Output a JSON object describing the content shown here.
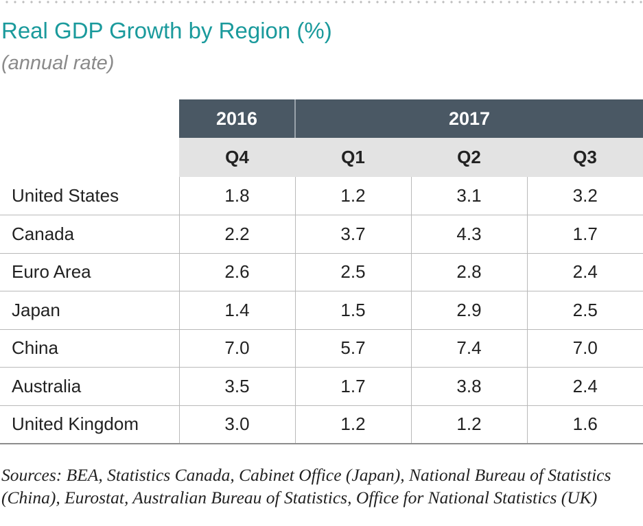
{
  "title": "Real GDP Growth by Region (%)",
  "subtitle": "(annual rate)",
  "chart_data": {
    "type": "table",
    "title": "Real GDP Growth by Region (%)",
    "subtitle": "(annual rate)",
    "years": [
      {
        "label": "2016",
        "quarters": [
          "Q4"
        ]
      },
      {
        "label": "2017",
        "quarters": [
          "Q1",
          "Q2",
          "Q3"
        ]
      }
    ],
    "columns": [
      "Q4",
      "Q1",
      "Q2",
      "Q3"
    ],
    "rows": [
      {
        "region": "United States",
        "values": [
          "1.8",
          "1.2",
          "3.1",
          "3.2"
        ]
      },
      {
        "region": "Canada",
        "values": [
          "2.2",
          "3.7",
          "4.3",
          "1.7"
        ]
      },
      {
        "region": "Euro Area",
        "values": [
          "2.6",
          "2.5",
          "2.8",
          "2.4"
        ]
      },
      {
        "region": "Japan",
        "values": [
          "1.4",
          "1.5",
          "2.9",
          "2.5"
        ]
      },
      {
        "region": "China",
        "values": [
          "7.0",
          "5.7",
          "7.4",
          "7.0"
        ]
      },
      {
        "region": "Australia",
        "values": [
          "3.5",
          "1.7",
          "3.8",
          "2.4"
        ]
      },
      {
        "region": "United Kingdom",
        "values": [
          "3.0",
          "1.2",
          "1.2",
          "1.6"
        ]
      }
    ]
  },
  "sources": "Sources: BEA, Statistics Canada, Cabinet Office (Japan), National Bureau of Statistics (China), Eurostat, Australian Bureau of Statistics, Office for National Statistics (UK)",
  "colors": {
    "title": "#1a9a9c",
    "header_dark": "#4a5864",
    "header_light": "#e3e3e3"
  }
}
